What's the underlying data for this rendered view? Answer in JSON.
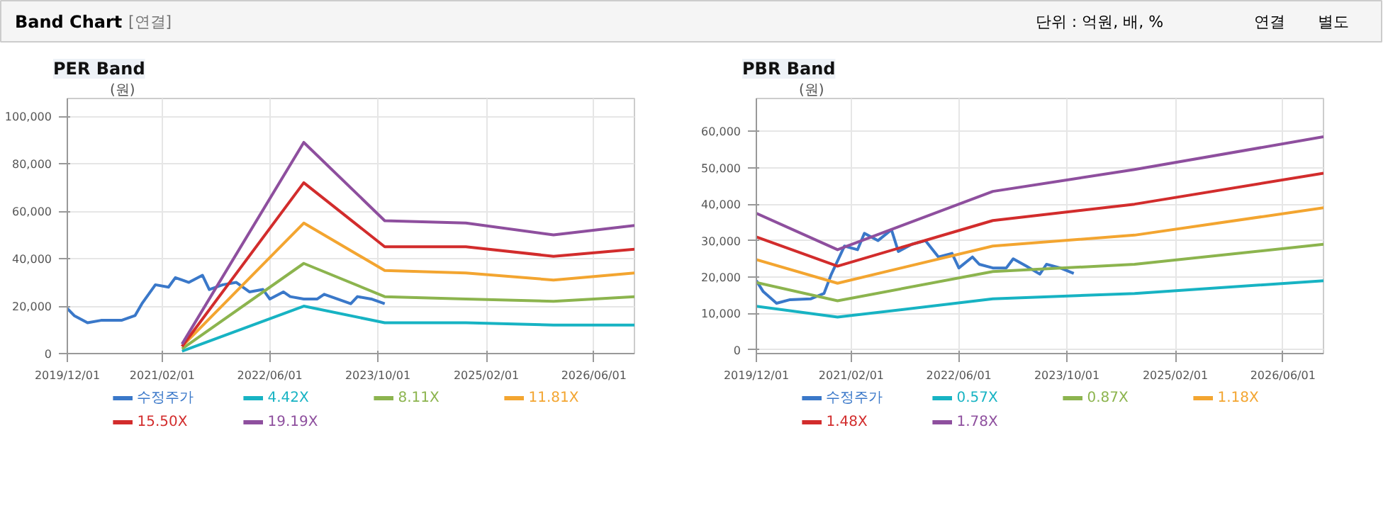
{
  "chart_data": [
    {
      "type": "other",
      "title": "Band Chart",
      "annotations": [
        "[연결]",
        "단위 : 억원, 배, %",
        "연결",
        "별도"
      ]
    },
    {
      "type": "line",
      "title": "PER Band",
      "ylabel": "(원)",
      "legend": "bottom",
      "grid": true,
      "marker": "none",
      "line_style": "solid",
      "xlim": [
        "2019-12-01",
        "2026-12-01"
      ],
      "xticks": [
        {
          "value": "2019-12-01",
          "label": "2019/12/01"
        },
        {
          "value": "2021-02-01",
          "label": "2021/02/01"
        },
        {
          "value": "2022-06-01",
          "label": "2022/06/01"
        },
        {
          "value": "2023-10-01",
          "label": "2023/10/01"
        },
        {
          "value": "2025-02-01",
          "label": "2025/02/01"
        },
        {
          "value": "2026-06-01",
          "label": "2026/06/01"
        }
      ],
      "ylim": [
        0,
        107500
      ],
      "yticks": [
        0,
        {
          "value": 20000,
          "label": "20,000"
        },
        {
          "value": 40000,
          "label": "40,000"
        },
        {
          "value": 60000,
          "label": "60,000"
        },
        {
          "value": 80000,
          "label": "80,000"
        },
        {
          "value": 100000,
          "label": "100,000"
        }
      ],
      "series": [
        {
          "name": "수정주가",
          "color": "#3a78c9",
          "x": [
            "2019-12",
            "2020-01",
            "2020-03",
            "2020-05",
            "2020-08",
            "2020-10",
            "2020-11",
            "2021-01",
            "2021-03",
            "2021-04",
            "2021-06",
            "2021-08",
            "2021-09",
            "2021-11",
            "2022-01",
            "2022-03",
            "2022-05",
            "2022-06",
            "2022-08",
            "2022-09",
            "2022-11",
            "2023-01",
            "2023-02",
            "2023-04",
            "2023-06",
            "2023-07",
            "2023-09",
            "2023-11"
          ],
          "values": [
            19000,
            16000,
            13000,
            14000,
            14000,
            16000,
            21000,
            29000,
            28000,
            32000,
            30000,
            33000,
            27000,
            29000,
            30000,
            26000,
            27000,
            23000,
            26000,
            24000,
            23000,
            23000,
            25000,
            23000,
            21000,
            24000,
            23000,
            21000
          ]
        },
        {
          "name": "4.42X",
          "color": "#17b3c3",
          "x": [
            "2021-05",
            "2022-11",
            "2023-11",
            "2024-11",
            "2025-12",
            "2026-12"
          ],
          "values": [
            1000,
            20000,
            13000,
            13000,
            12000,
            12000
          ]
        },
        {
          "name": "8.11X",
          "color": "#8cb44e",
          "x": [
            "2021-05",
            "2022-11",
            "2023-11",
            "2024-11",
            "2025-12",
            "2026-12"
          ],
          "values": [
            2000,
            38000,
            24000,
            23000,
            22000,
            24000
          ]
        },
        {
          "name": "11.81X",
          "color": "#f3a530",
          "x": [
            "2021-05",
            "2022-11",
            "2023-11",
            "2024-11",
            "2025-12",
            "2026-12"
          ],
          "values": [
            3000,
            55000,
            35000,
            34000,
            31000,
            34000
          ]
        },
        {
          "name": "15.50X",
          "color": "#d22c2c",
          "x": [
            "2021-05",
            "2022-11",
            "2023-11",
            "2024-11",
            "2025-12",
            "2026-12"
          ],
          "values": [
            3000,
            72000,
            45000,
            45000,
            41000,
            44000
          ]
        },
        {
          "name": "19.19X",
          "color": "#8e4f9e",
          "x": [
            "2021-05",
            "2022-11",
            "2023-11",
            "2024-11",
            "2025-12",
            "2026-12"
          ],
          "values": [
            4000,
            89000,
            56000,
            55000,
            50000,
            54000
          ]
        }
      ]
    },
    {
      "type": "line",
      "title": "PBR Band",
      "ylabel": "(원)",
      "legend": "bottom",
      "grid": true,
      "marker": "none",
      "line_style": "solid",
      "xlim": [
        "2019-12-01",
        "2026-12-01"
      ],
      "xticks": [
        {
          "value": "2019-12-01",
          "label": "2019/12/01"
        },
        {
          "value": "2021-02-01",
          "label": "2021/02/01"
        },
        {
          "value": "2022-06-01",
          "label": "2022/06/01"
        },
        {
          "value": "2023-10-01",
          "label": "2023/10/01"
        },
        {
          "value": "2025-02-01",
          "label": "2025/02/01"
        },
        {
          "value": "2026-06-01",
          "label": "2026/06/01"
        }
      ],
      "ylim": [
        -1000,
        69000
      ],
      "yticks": [
        0,
        {
          "value": 10000,
          "label": "10,000"
        },
        {
          "value": 20000,
          "label": "20,000"
        },
        {
          "value": 30000,
          "label": "30,000"
        },
        {
          "value": 40000,
          "label": "40,000"
        },
        {
          "value": 50000,
          "label": "50,000"
        },
        {
          "value": 60000,
          "label": "60,000"
        }
      ],
      "series": [
        {
          "name": "수정주가",
          "color": "#3a78c9",
          "x": [
            "2019-12",
            "2020-01",
            "2020-03",
            "2020-05",
            "2020-08",
            "2020-10",
            "2020-11",
            "2021-01",
            "2021-03",
            "2021-04",
            "2021-06",
            "2021-08",
            "2021-09",
            "2021-11",
            "2022-01",
            "2022-03",
            "2022-05",
            "2022-06",
            "2022-08",
            "2022-09",
            "2022-11",
            "2023-01",
            "2023-02",
            "2023-04",
            "2023-06",
            "2023-07",
            "2023-09",
            "2023-11"
          ],
          "values": [
            19000,
            16000,
            12800,
            13800,
            14000,
            15500,
            20500,
            28500,
            27500,
            32000,
            30000,
            33000,
            27000,
            29000,
            30000,
            25500,
            26500,
            22500,
            25500,
            23500,
            22500,
            22500,
            25000,
            23000,
            20800,
            23500,
            22500,
            21000
          ]
        },
        {
          "name": "0.57X",
          "color": "#17b3c3",
          "x": [
            "2019-12",
            "2020-12",
            "2022-11",
            "2024-08",
            "2026-12"
          ],
          "values": [
            12000,
            9000,
            14000,
            15500,
            19000
          ]
        },
        {
          "name": "0.87X",
          "color": "#8cb44e",
          "x": [
            "2019-12",
            "2020-12",
            "2022-11",
            "2024-08",
            "2026-12"
          ],
          "values": [
            18500,
            13500,
            21500,
            23500,
            29000
          ]
        },
        {
          "name": "1.18X",
          "color": "#f3a530",
          "x": [
            "2019-12",
            "2020-12",
            "2022-11",
            "2024-08",
            "2026-12"
          ],
          "values": [
            24800,
            18300,
            28500,
            31500,
            39000
          ]
        },
        {
          "name": "1.48X",
          "color": "#d22c2c",
          "x": [
            "2019-12",
            "2020-12",
            "2022-11",
            "2024-08",
            "2026-12"
          ],
          "values": [
            31000,
            23000,
            35500,
            40000,
            48500
          ]
        },
        {
          "name": "1.78X",
          "color": "#8e4f9e",
          "x": [
            "2019-12",
            "2020-12",
            "2022-11",
            "2024-08",
            "2026-12"
          ],
          "values": [
            37500,
            27500,
            43500,
            49500,
            58500
          ]
        }
      ]
    }
  ]
}
